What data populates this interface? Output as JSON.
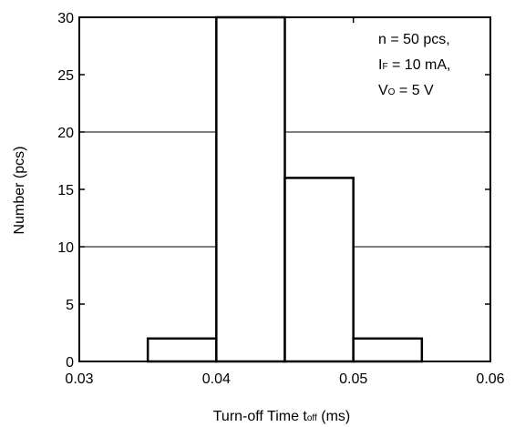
{
  "chart_data": {
    "type": "bar",
    "xlabel": {
      "main": "Turn-off Time  t",
      "sub": "off",
      "unit": " (ms)"
    },
    "ylabel": "Number  (pcs)",
    "xlim": [
      0.03,
      0.06
    ],
    "ylim": [
      0,
      30
    ],
    "x_ticks": [
      "0.03",
      "0.04",
      "0.05",
      "0.06"
    ],
    "x_tick_values": [
      0.03,
      0.04,
      0.05,
      0.06
    ],
    "y_ticks": [
      "0",
      "5",
      "10",
      "15",
      "20",
      "25",
      "30"
    ],
    "y_tick_values": [
      0,
      5,
      10,
      15,
      20,
      25,
      30
    ],
    "gridlines_y": [
      10,
      20
    ],
    "bins": [
      {
        "x0": 0.035,
        "x1": 0.04,
        "value": 2
      },
      {
        "x0": 0.04,
        "x1": 0.045,
        "value": 30
      },
      {
        "x0": 0.045,
        "x1": 0.05,
        "value": 16
      },
      {
        "x0": 0.05,
        "x1": 0.055,
        "value": 2
      }
    ],
    "annotation": {
      "line1": "n = 50 pcs,",
      "line2": {
        "main": "I",
        "sub": "F",
        "rest": " = 10 mA,"
      },
      "line3": {
        "main": "V",
        "sub": "O",
        "rest": " = 5 V"
      }
    }
  }
}
